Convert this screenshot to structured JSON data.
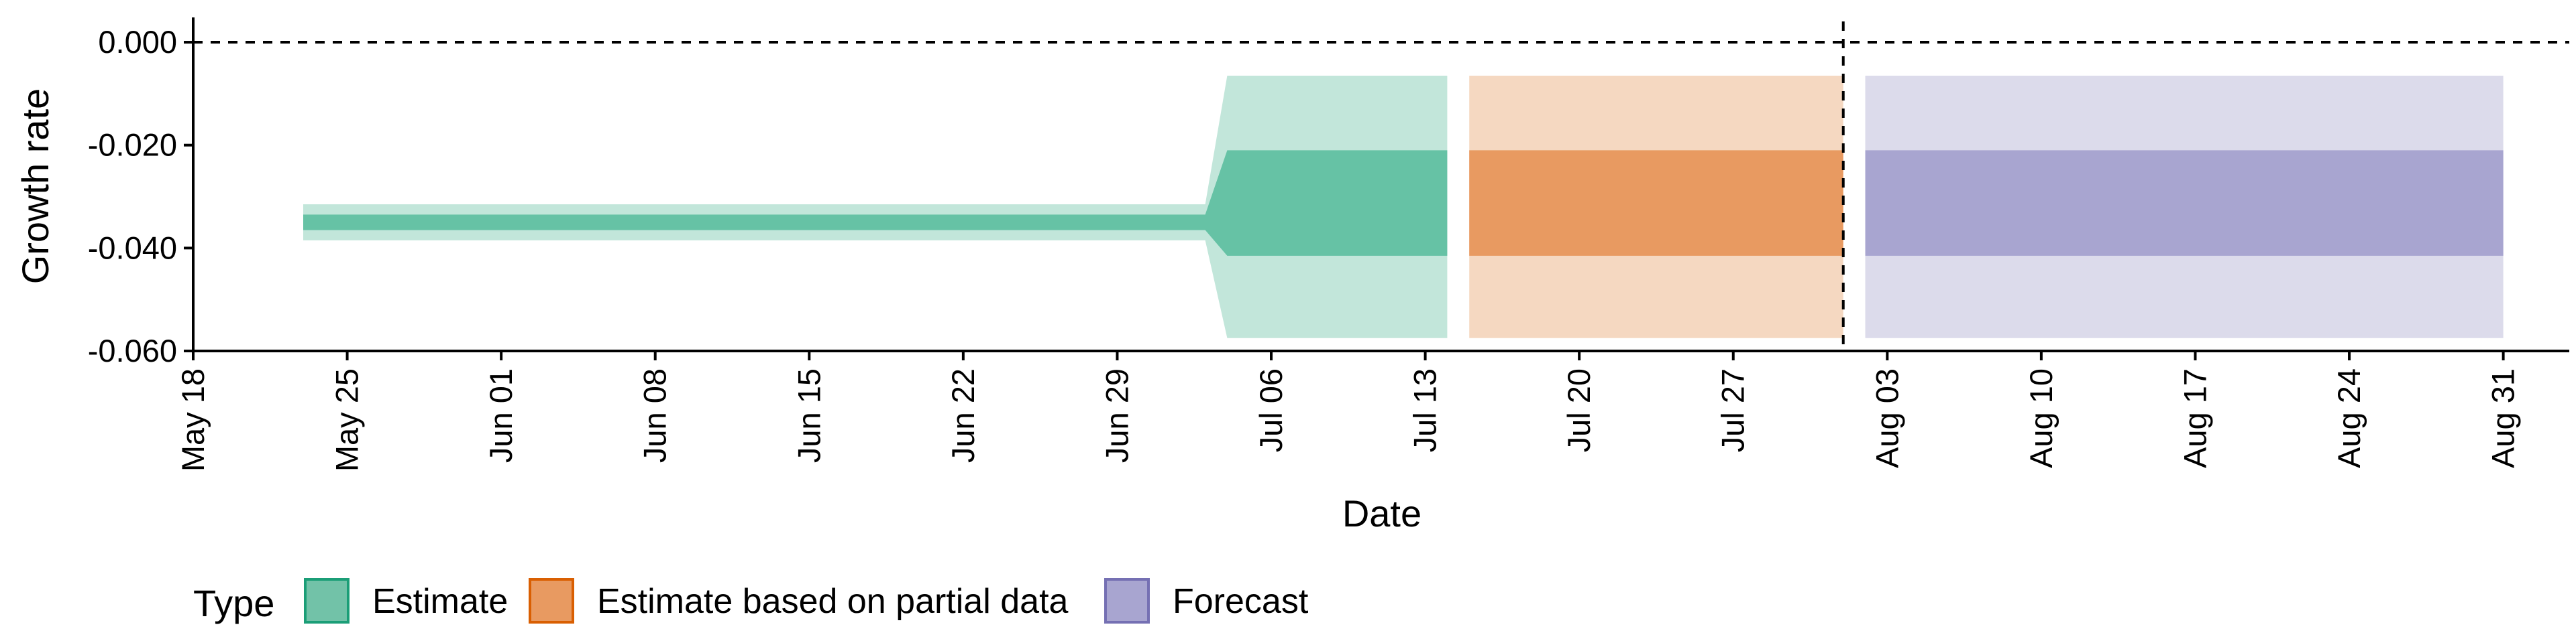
{
  "chart_data": {
    "type": "area",
    "xlabel": "Date",
    "ylabel": "Growth rate",
    "x_type": "date",
    "xlim": [
      "2020-05-18",
      "2020-09-03"
    ],
    "ylim": [
      -0.06,
      0.003
    ],
    "yticks": [
      0.0,
      -0.02,
      -0.04,
      -0.06
    ],
    "ytick_labels": [
      "0.000",
      "-0.020",
      "-0.040",
      "-0.060"
    ],
    "xticks": [
      "2020-05-18",
      "2020-05-25",
      "2020-06-01",
      "2020-06-08",
      "2020-06-15",
      "2020-06-22",
      "2020-06-29",
      "2020-07-06",
      "2020-07-13",
      "2020-07-20",
      "2020-07-27",
      "2020-08-03",
      "2020-08-10",
      "2020-08-17",
      "2020-08-24",
      "2020-08-31"
    ],
    "xtick_labels": [
      "May 18",
      "May 25",
      "Jun 01",
      "Jun 08",
      "Jun 15",
      "Jun 22",
      "Jun 29",
      "Jul 06",
      "Jul 13",
      "Jul 20",
      "Jul 27",
      "Aug 03",
      "Aug 10",
      "Aug 17",
      "Aug 24",
      "Aug 31"
    ],
    "hline": {
      "y": 0.0,
      "style": "dashed"
    },
    "vline": {
      "x": "2020-08-01",
      "style": "dashed"
    },
    "grid": false,
    "legend": {
      "title": "Type",
      "position": "bottom-left",
      "entries": [
        "Estimate",
        "Estimate based on partial data",
        "Forecast"
      ]
    },
    "series": [
      {
        "name": "Estimate",
        "fill_color": "#66c2a5",
        "outer_color": "#c2e6da",
        "x": [
          "2020-05-23",
          "2020-07-03",
          "2020-07-04",
          "2020-07-14"
        ],
        "inner_lower": [
          -0.0365,
          -0.0365,
          -0.0415,
          -0.0415
        ],
        "inner_upper": [
          -0.0335,
          -0.0335,
          -0.021,
          -0.021
        ],
        "outer_lower": [
          -0.0385,
          -0.0385,
          -0.0575,
          -0.0575
        ],
        "outer_upper": [
          -0.0315,
          -0.0315,
          -0.0065,
          -0.0065
        ]
      },
      {
        "name": "Estimate based on partial data",
        "fill_color": "#e89a61",
        "outer_color": "#f5d8c1",
        "x": [
          "2020-07-15",
          "2020-08-01"
        ],
        "inner_lower": [
          -0.0415,
          -0.0415
        ],
        "inner_upper": [
          -0.021,
          -0.021
        ],
        "outer_lower": [
          -0.0575,
          -0.0575
        ],
        "outer_upper": [
          -0.0065,
          -0.0065
        ]
      },
      {
        "name": "Forecast",
        "fill_color": "#a8a5d0",
        "outer_color": "#dcdbeb",
        "x": [
          "2020-08-02",
          "2020-08-31"
        ],
        "inner_lower": [
          -0.0415,
          -0.0415
        ],
        "inner_upper": [
          -0.021,
          -0.021
        ],
        "outer_lower": [
          -0.0575,
          -0.0575
        ],
        "outer_upper": [
          -0.0065,
          -0.0065
        ]
      }
    ]
  },
  "legend_colors": {
    "Estimate": {
      "fill": "#72c2a8",
      "border": "#1b9e77"
    },
    "Estimate based on partial data": {
      "fill": "#e89a61",
      "border": "#d95f02"
    },
    "Forecast": {
      "fill": "#a8a5d0",
      "border": "#7570b3"
    }
  }
}
